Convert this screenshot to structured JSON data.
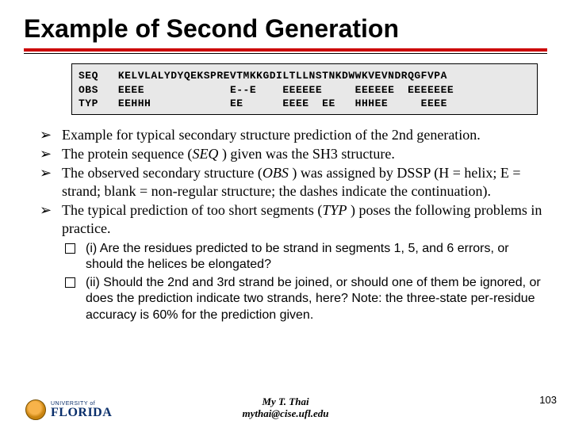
{
  "title": "Example of Second Generation",
  "seqbox": {
    "labels": [
      "SEQ",
      "OBS",
      "TYP"
    ],
    "lines": [
      "KELVLALYDYQEKSPREVTMKKGDILTLLNSTNKDWWKVEVNDRQGFVPA",
      " EEEE             E--E    EEEEEE     EEEEEE  EEEEEEE",
      " EEHHH            EE      EEEE  EE   HHHEE     EEEE"
    ]
  },
  "bullets": [
    "Example for typical secondary structure prediction of the 2nd generation.",
    "The protein sequence (<span class=\"italic\">SEQ</span> ) given was the SH3 structure.",
    "The observed secondary structure (<span class=\"italic\">OBS</span> ) was assigned by DSSP (H = helix; E = strand; blank = non-regular structure; the dashes indicate the continuation).",
    "The typical prediction of too short segments (<span class=\"italic\">TYP</span> ) poses the following problems in practice."
  ],
  "sublist": [
    "(i) Are the residues predicted to be strand in segments 1, 5, and 6 errors, or should the helices be elongated?",
    "(ii) Should the 2nd and 3rd strand be joined, or should one of them be ignored, or does the prediction indicate two strands, here? Note: the three-state per-residue accuracy is 60% for the prediction given."
  ],
  "footer": {
    "uni_line1": "UNIVERSITY of",
    "uni_line2": "FLORIDA",
    "author_name": "My T. Thai",
    "author_email": "mythai@cise.ufl.edu",
    "page": "103"
  },
  "colors": {
    "accent_red": "#cc0000",
    "uf_blue": "#0a2f6b",
    "seqbox_bg": "#e8e8e8"
  }
}
